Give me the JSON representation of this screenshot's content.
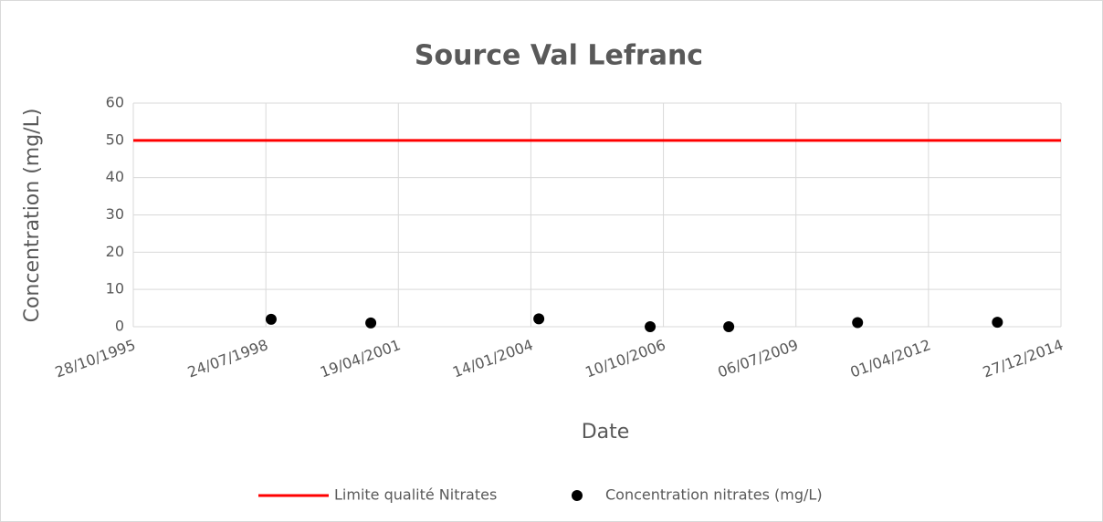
{
  "chart_data": {
    "type": "scatter",
    "title": "Source Val Lefranc",
    "x_label": "Date",
    "y_label": "Concentration (mg/L)",
    "xlim": [
      35000,
      42000
    ],
    "xticks": [
      {
        "value": 35000,
        "label": "28/10/1995"
      },
      {
        "value": 36000,
        "label": "24/07/1998"
      },
      {
        "value": 37000,
        "label": "19/04/2001"
      },
      {
        "value": 38000,
        "label": "14/01/2004"
      },
      {
        "value": 39000,
        "label": "10/10/2006"
      },
      {
        "value": 40000,
        "label": "06/07/2009"
      },
      {
        "value": 41000,
        "label": "01/04/2012"
      },
      {
        "value": 42000,
        "label": "27/12/2014"
      }
    ],
    "ylim": [
      0,
      60
    ],
    "yticks": [
      0,
      10,
      20,
      30,
      40,
      50,
      60
    ],
    "grid": true,
    "legend": "bottom",
    "series": [
      {
        "name": "Limite qualité Nitrates",
        "color": "#ff0000",
        "mode": "line",
        "x": [
          35000,
          42000
        ],
        "values": [
          50,
          50
        ]
      },
      {
        "name": "Concentration nitrates (mg/L)",
        "color": "#000000",
        "mode": "markers",
        "x": [
          36040,
          36792,
          38060,
          38900,
          39493,
          40465,
          41520
        ],
        "values": [
          2,
          1,
          2.1,
          0,
          0,
          1.1,
          1.2
        ]
      }
    ]
  }
}
